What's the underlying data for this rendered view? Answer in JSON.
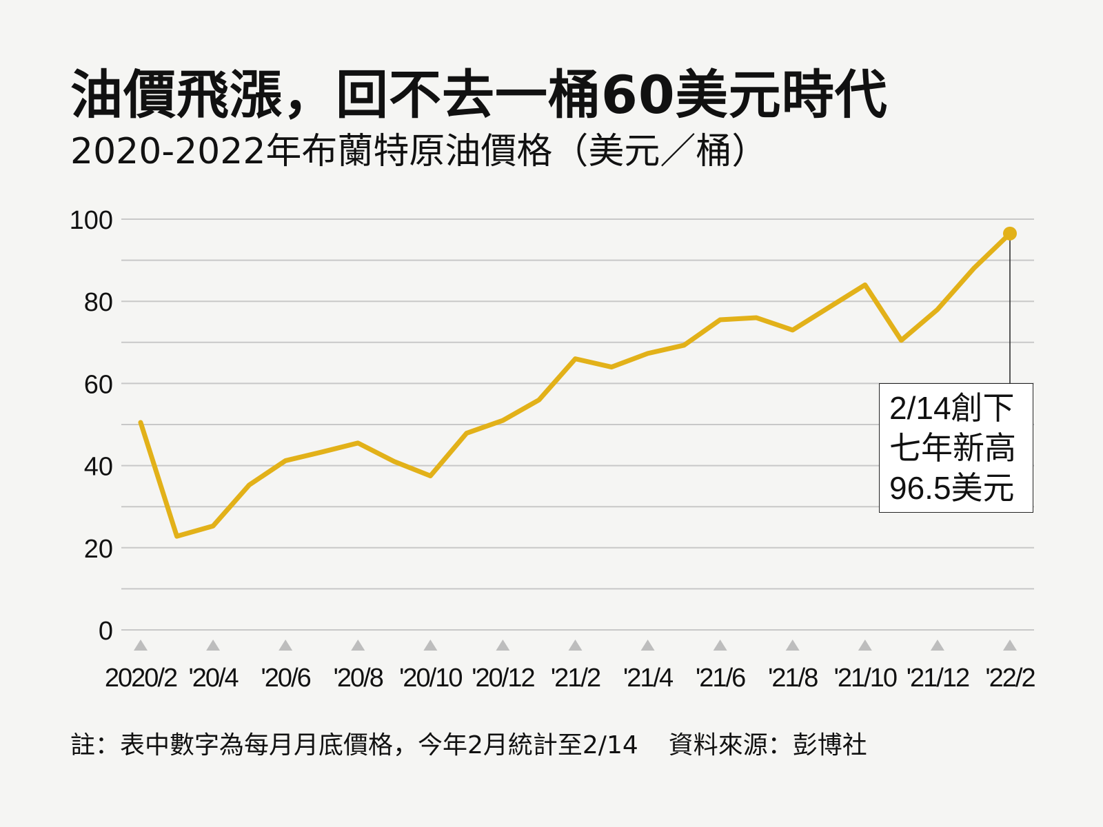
{
  "title": "油價飛漲，回不去一桶60美元時代",
  "subtitle": "2020-2022年布蘭特原油價格（美元／桶）",
  "note": "註：表中數字為每月月底價格，今年2月統計至2/14",
  "source": "資料來源：彭博社",
  "annotation": {
    "line1": "2/14創下",
    "line2": "七年新高",
    "line3": "96.5美元"
  },
  "colors": {
    "line": "#e2b119",
    "grid": "#c8c8c8",
    "marker": "#bdbdbd",
    "background": "#f5f5f3"
  },
  "chart_data": {
    "type": "line",
    "title": "油價飛漲，回不去一桶60美元時代",
    "subtitle": "2020-2022年布蘭特原油價格（美元／桶）",
    "xlabel": "",
    "ylabel": "",
    "ylim": [
      0,
      100
    ],
    "yticks": [
      0,
      20,
      40,
      60,
      80,
      100
    ],
    "grid": true,
    "x": [
      "2020/2",
      "2020/3",
      "2020/4",
      "2020/5",
      "2020/6",
      "2020/7",
      "2020/8",
      "2020/9",
      "2020/10",
      "2020/11",
      "2020/12",
      "2021/1",
      "2021/2",
      "2021/3",
      "2021/4",
      "2021/5",
      "2021/6",
      "2021/7",
      "2021/8",
      "2021/9",
      "2021/10",
      "2021/11",
      "2021/12",
      "2022/1",
      "2022/2"
    ],
    "xtick_labels": [
      "2020/2",
      "'20/4",
      "'20/6",
      "'20/8",
      "'20/10",
      "'20/12",
      "'21/2",
      "'21/4",
      "'21/6",
      "'21/8",
      "'21/10",
      "'21/12",
      "'22/2"
    ],
    "series": [
      {
        "values": [
          50.5,
          22.8,
          25.3,
          35.3,
          41.2,
          43.3,
          45.5,
          41.0,
          37.5,
          47.9,
          51.0,
          56.0,
          66.0,
          64.0,
          67.3,
          69.3,
          75.5,
          76.0,
          73.0,
          78.5,
          84.0,
          70.5,
          78.0,
          88.0,
          96.5
        ]
      }
    ],
    "annotation": {
      "x": "2022/2",
      "y": 96.5,
      "text": "2/14創下 七年新高 96.5美元"
    }
  }
}
